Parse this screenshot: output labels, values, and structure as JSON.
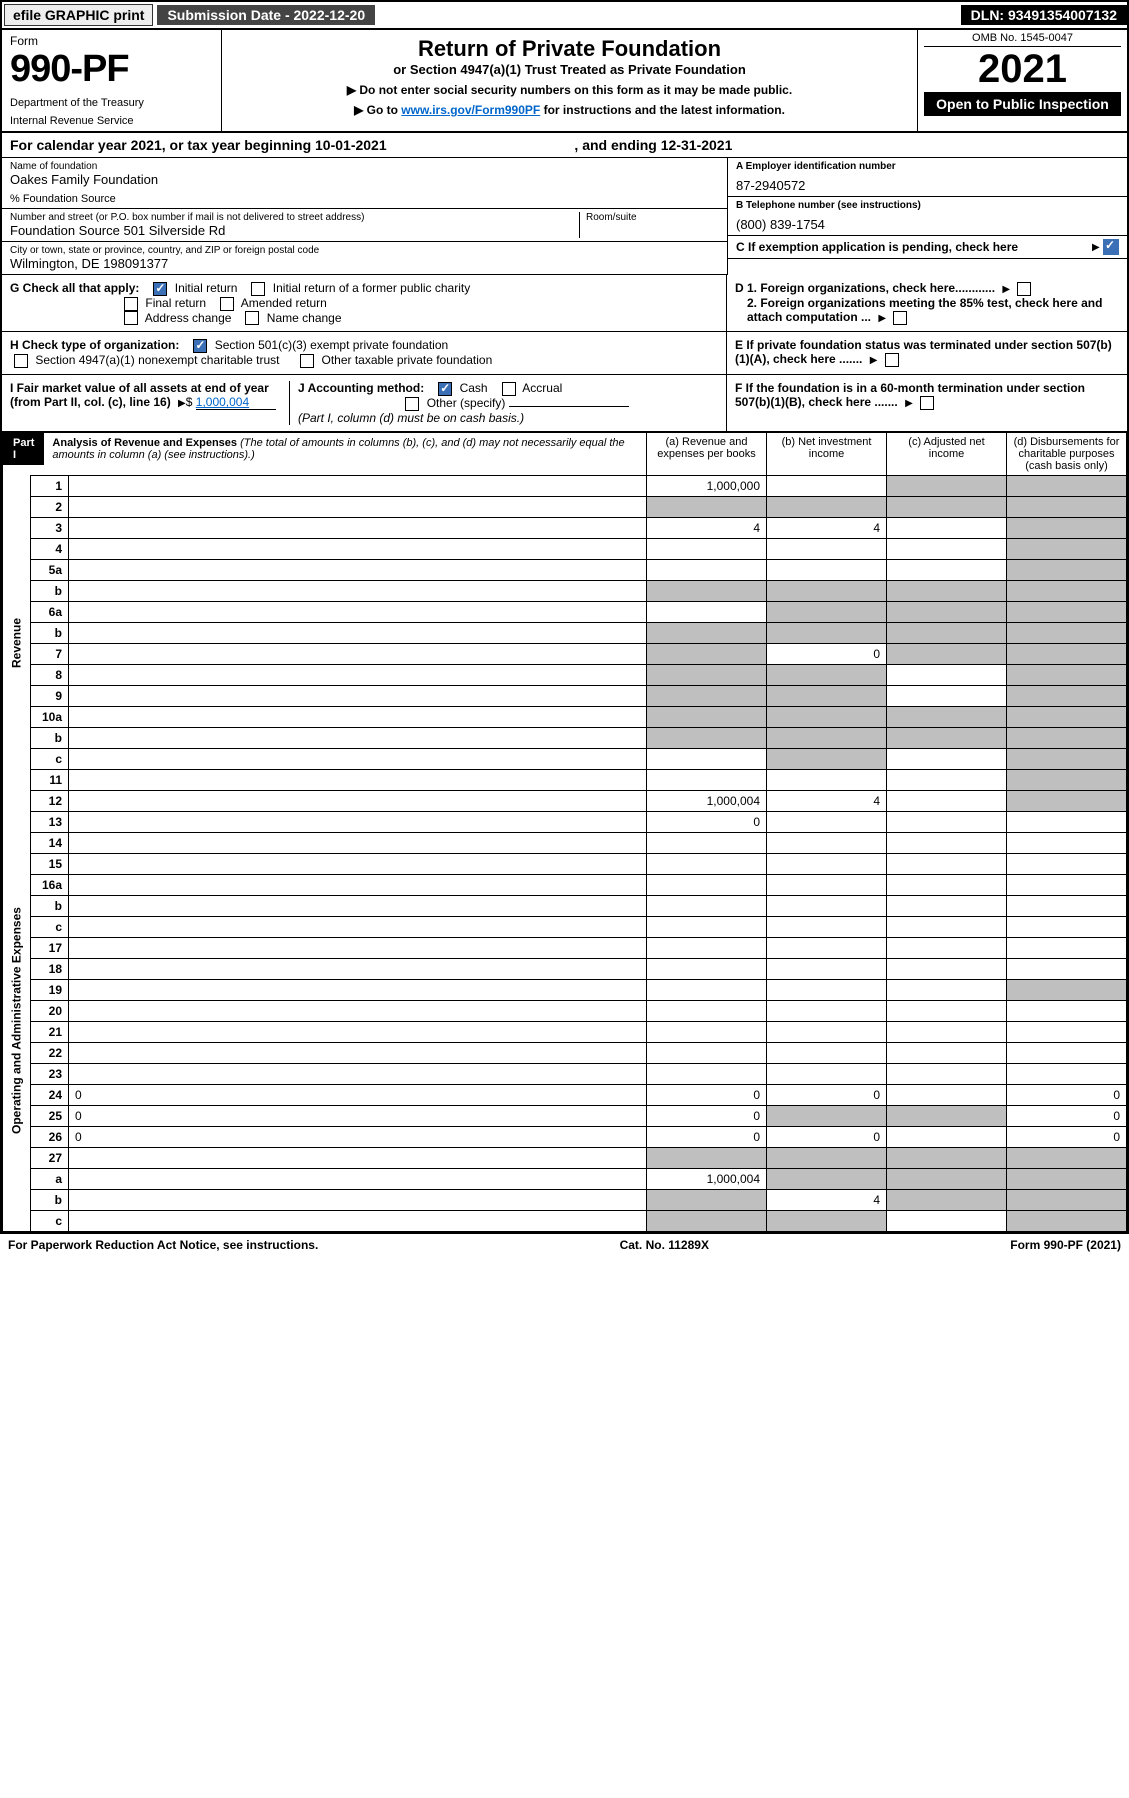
{
  "topbar": {
    "efile": "efile GRAPHIC print",
    "submission_label": "Submission Date - 2022-12-20",
    "dln_label": "DLN: 93491354007132"
  },
  "header": {
    "form_label": "Form",
    "form_number": "990-PF",
    "dept": "Department of the Treasury",
    "irs": "Internal Revenue Service",
    "title": "Return of Private Foundation",
    "subtitle": "or Section 4947(a)(1) Trust Treated as Private Foundation",
    "note1": "▶ Do not enter social security numbers on this form as it may be made public.",
    "note2_pre": "▶ Go to ",
    "note2_link": "www.irs.gov/Form990PF",
    "note2_post": " for instructions and the latest information.",
    "omb": "OMB No. 1545-0047",
    "tax_year": "2021",
    "open": "Open to Public Inspection"
  },
  "calendar": {
    "text_pre": "For calendar year 2021, or tax year beginning ",
    "begin": "10-01-2021",
    "text_mid": ", and ending ",
    "end": "12-31-2021"
  },
  "id": {
    "name_lbl": "Name of foundation",
    "name": "Oakes Family Foundation",
    "care_of": "% Foundation Source",
    "addr_lbl": "Number and street (or P.O. box number if mail is not delivered to street address)",
    "addr": "Foundation Source 501 Silverside Rd",
    "room_lbl": "Room/suite",
    "city_lbl": "City or town, state or province, country, and ZIP or foreign postal code",
    "city": "Wilmington, DE  198091377",
    "a_lbl": "A Employer identification number",
    "a_val": "87-2940572",
    "b_lbl": "B Telephone number (see instructions)",
    "b_val": "(800) 839-1754",
    "c_lbl": "C If exemption application is pending, check here"
  },
  "g": {
    "label": "G Check all that apply:",
    "initial": "Initial return",
    "initial_former": "Initial return of a former public charity",
    "final": "Final return",
    "amended": "Amended return",
    "addr_change": "Address change",
    "name_change": "Name change"
  },
  "h": {
    "label": "H Check type of organization:",
    "s501": "Section 501(c)(3) exempt private foundation",
    "s4947": "Section 4947(a)(1) nonexempt charitable trust",
    "other_tax": "Other taxable private foundation"
  },
  "i": {
    "label": "I Fair market value of all assets at end of year (from Part II, col. (c), line 16)",
    "val": "1,000,004"
  },
  "j": {
    "label": "J Accounting method:",
    "cash": "Cash",
    "accrual": "Accrual",
    "other": "Other (specify)",
    "note": "(Part I, column (d) must be on cash basis.)"
  },
  "d": {
    "d1": "D 1. Foreign organizations, check here............",
    "d2": "2. Foreign organizations meeting the 85% test, check here and attach computation ..."
  },
  "e": {
    "text": "E  If private foundation status was terminated under section 507(b)(1)(A), check here ......."
  },
  "f": {
    "text": "F  If the foundation is in a 60-month termination under section 507(b)(1)(B), check here ......."
  },
  "part1": {
    "label": "Part I",
    "title": "Analysis of Revenue and Expenses",
    "note": "(The total of amounts in columns (b), (c), and (d) may not necessarily equal the amounts in column (a) (see instructions).)",
    "col_a": "(a) Revenue and expenses per books",
    "col_b": "(b) Net investment income",
    "col_c": "(c) Adjusted net income",
    "col_d": "(d) Disbursements for charitable purposes (cash basis only)"
  },
  "sections": {
    "revenue": "Revenue",
    "op_admin": "Operating and Administrative Expenses"
  },
  "lines": [
    {
      "n": "1",
      "d": "",
      "a": "1,000,000",
      "b": "",
      "c": "",
      "sc": true,
      "sd": true
    },
    {
      "n": "2",
      "d": "",
      "a": "",
      "b": "",
      "c": "",
      "sa": true,
      "sb": true,
      "sc": true,
      "sd": true
    },
    {
      "n": "3",
      "d": "",
      "a": "4",
      "b": "4",
      "c": "",
      "sd": true
    },
    {
      "n": "4",
      "d": "",
      "a": "",
      "b": "",
      "c": "",
      "sd": true
    },
    {
      "n": "5a",
      "d": "",
      "a": "",
      "b": "",
      "c": "",
      "sd": true
    },
    {
      "n": "b",
      "d": "",
      "a": "",
      "b": "",
      "c": "",
      "sa": true,
      "sb": true,
      "sc": true,
      "sd": true
    },
    {
      "n": "6a",
      "d": "",
      "a": "",
      "b": "",
      "c": "",
      "sb": true,
      "sc": true,
      "sd": true
    },
    {
      "n": "b",
      "d": "",
      "a": "",
      "b": "",
      "c": "",
      "sa": true,
      "sb": true,
      "sc": true,
      "sd": true
    },
    {
      "n": "7",
      "d": "",
      "a": "",
      "b": "0",
      "c": "",
      "sa": true,
      "sc": true,
      "sd": true
    },
    {
      "n": "8",
      "d": "",
      "a": "",
      "b": "",
      "c": "",
      "sa": true,
      "sb": true,
      "sd": true
    },
    {
      "n": "9",
      "d": "",
      "a": "",
      "b": "",
      "c": "",
      "sa": true,
      "sb": true,
      "sd": true
    },
    {
      "n": "10a",
      "d": "",
      "a": "",
      "b": "",
      "c": "",
      "sa": true,
      "sb": true,
      "sc": true,
      "sd": true
    },
    {
      "n": "b",
      "d": "",
      "a": "",
      "b": "",
      "c": "",
      "sa": true,
      "sb": true,
      "sc": true,
      "sd": true
    },
    {
      "n": "c",
      "d": "",
      "a": "",
      "b": "",
      "c": "",
      "sb": true,
      "sd": true
    },
    {
      "n": "11",
      "d": "",
      "a": "",
      "b": "",
      "c": "",
      "sd": true
    },
    {
      "n": "12",
      "d": "",
      "a": "1,000,004",
      "b": "4",
      "c": "",
      "sd": true
    }
  ],
  "exp_lines": [
    {
      "n": "13",
      "d": "",
      "a": "0",
      "b": "",
      "c": ""
    },
    {
      "n": "14",
      "d": "",
      "a": "",
      "b": "",
      "c": ""
    },
    {
      "n": "15",
      "d": "",
      "a": "",
      "b": "",
      "c": ""
    },
    {
      "n": "16a",
      "d": "",
      "a": "",
      "b": "",
      "c": ""
    },
    {
      "n": "b",
      "d": "",
      "a": "",
      "b": "",
      "c": ""
    },
    {
      "n": "c",
      "d": "",
      "a": "",
      "b": "",
      "c": ""
    },
    {
      "n": "17",
      "d": "",
      "a": "",
      "b": "",
      "c": ""
    },
    {
      "n": "18",
      "d": "",
      "a": "",
      "b": "",
      "c": ""
    },
    {
      "n": "19",
      "d": "",
      "a": "",
      "b": "",
      "c": "",
      "sd": true
    },
    {
      "n": "20",
      "d": "",
      "a": "",
      "b": "",
      "c": ""
    },
    {
      "n": "21",
      "d": "",
      "a": "",
      "b": "",
      "c": ""
    },
    {
      "n": "22",
      "d": "",
      "a": "",
      "b": "",
      "c": ""
    },
    {
      "n": "23",
      "d": "",
      "a": "",
      "b": "",
      "c": ""
    },
    {
      "n": "24",
      "d": "0",
      "a": "0",
      "b": "0",
      "c": ""
    },
    {
      "n": "25",
      "d": "0",
      "a": "0",
      "b": "",
      "c": "",
      "sb": true,
      "sc": true
    },
    {
      "n": "26",
      "d": "0",
      "a": "0",
      "b": "0",
      "c": ""
    },
    {
      "n": "27",
      "d": "",
      "a": "",
      "b": "",
      "c": "",
      "sa": true,
      "sb": true,
      "sc": true,
      "sd": true
    },
    {
      "n": "a",
      "d": "",
      "a": "1,000,004",
      "b": "",
      "c": "",
      "sb": true,
      "sc": true,
      "sd": true
    },
    {
      "n": "b",
      "d": "",
      "a": "",
      "b": "4",
      "c": "",
      "sa": true,
      "sc": true,
      "sd": true
    },
    {
      "n": "c",
      "d": "",
      "a": "",
      "b": "",
      "c": "",
      "sa": true,
      "sb": true,
      "sd": true
    }
  ],
  "footer": {
    "left": "For Paperwork Reduction Act Notice, see instructions.",
    "mid": "Cat. No. 11289X",
    "right": "Form 990-PF (2021)"
  },
  "colors": {
    "shade": "#bfbfbf",
    "link": "#0066cc",
    "check": "#3b6fb6"
  }
}
